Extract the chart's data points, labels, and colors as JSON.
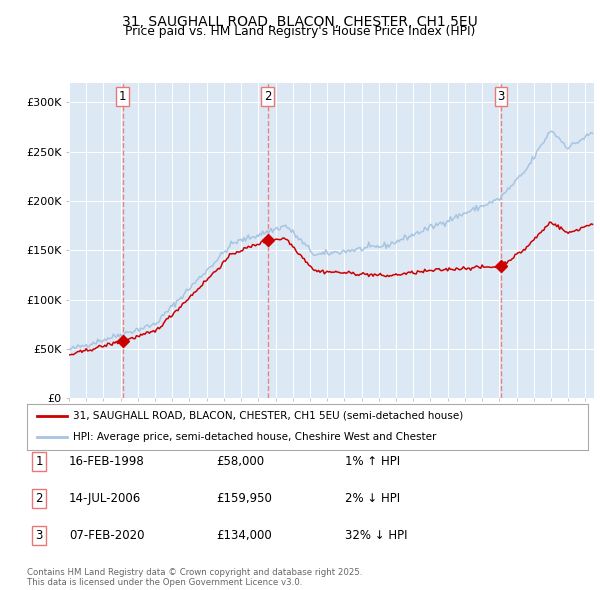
{
  "title1": "31, SAUGHALL ROAD, BLACON, CHESTER, CH1 5EU",
  "title2": "Price paid vs. HM Land Registry's House Price Index (HPI)",
  "legend_line1": "31, SAUGHALL ROAD, BLACON, CHESTER, CH1 5EU (semi-detached house)",
  "legend_line2": "HPI: Average price, semi-detached house, Cheshire West and Chester",
  "sale1_label": "1",
  "sale1_date": "16-FEB-1998",
  "sale1_price": "£58,000",
  "sale1_hpi": "1% ↑ HPI",
  "sale1_date_num": 1998.12,
  "sale1_value": 58000,
  "sale2_label": "2",
  "sale2_date": "14-JUL-2006",
  "sale2_price": "£159,950",
  "sale2_hpi": "2% ↓ HPI",
  "sale2_date_num": 2006.54,
  "sale2_value": 159950,
  "sale3_label": "3",
  "sale3_date": "07-FEB-2020",
  "sale3_price": "£134,000",
  "sale3_hpi": "32% ↓ HPI",
  "sale3_date_num": 2020.1,
  "sale3_value": 134000,
  "hpi_color": "#a8c4e0",
  "price_color": "#cc0000",
  "sale_marker_color": "#cc0000",
  "background_color": "#dce9f5",
  "vline_color": "#e87878",
  "grid_color": "#ffffff",
  "ylim_min": 0,
  "ylim_max": 320000,
  "xmin": 1995.0,
  "xmax": 2025.5,
  "footnote": "Contains HM Land Registry data © Crown copyright and database right 2025.\nThis data is licensed under the Open Government Licence v3.0."
}
